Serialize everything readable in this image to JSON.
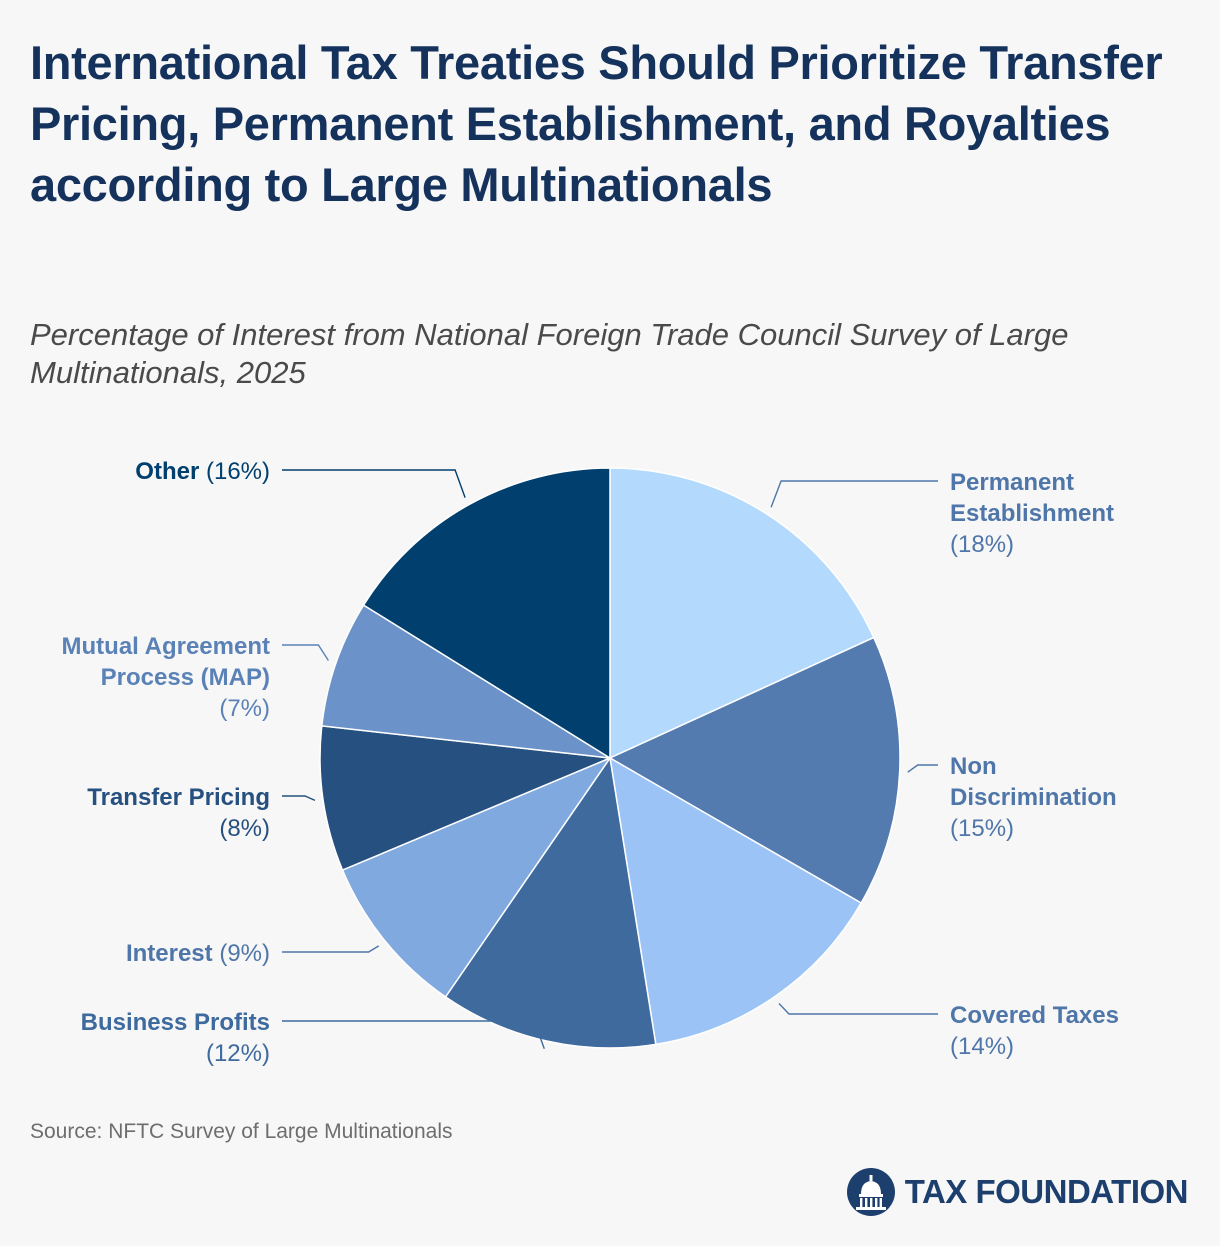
{
  "title": "International Tax Treaties Should Prioritize Transfer Pricing, Permanent Establishment, and Royalties according to Large Multinationals",
  "subtitle": "Percentage of Interest from National Foreign Trade Council Survey of Large Multinationals, 2025",
  "source": "Source: NFTC Survey of Large Multinationals",
  "brand": "TAX FOUNDATION",
  "chart_data": {
    "type": "pie",
    "title": "International Tax Treaties Should Prioritize Transfer Pricing, Permanent Establishment, and Royalties according to Large Multinationals",
    "start": "top, clockwise",
    "slices": [
      {
        "label_lines": [
          "Permanent",
          "Establishment"
        ],
        "pct_label": "(18%)",
        "value": 18,
        "color": "#b3d9fd",
        "label_color": "#4f76a8",
        "side": "right"
      },
      {
        "label_lines": [
          "Non",
          "Discrimination"
        ],
        "pct_label": "(15%)",
        "value": 15,
        "color": "#537bb0",
        "label_color": "#4f76a8",
        "side": "right"
      },
      {
        "label_lines": [
          "Covered Taxes"
        ],
        "pct_label": "(14%)",
        "value": 14,
        "color": "#9cc3f5",
        "label_color": "#4f76a8",
        "side": "right"
      },
      {
        "label_lines": [
          "Business Profits"
        ],
        "pct_label": "(12%)",
        "value": 12,
        "color": "#3e6a9e",
        "label_color": "#3e6a9e",
        "side": "left"
      },
      {
        "label_lines": [
          "Interest"
        ],
        "pct_label": "(9%)",
        "value": 9,
        "color": "#80a9e0",
        "label_color": "#4f76a8",
        "side": "left"
      },
      {
        "label_lines": [
          "Transfer Pricing"
        ],
        "pct_label": "(8%)",
        "value": 8,
        "color": "#26507f",
        "label_color": "#26507f",
        "side": "left"
      },
      {
        "label_lines": [
          "Mutual Agreement",
          "Process (MAP)"
        ],
        "pct_label": "(7%)",
        "value": 7,
        "color": "#6b93c9",
        "label_color": "#5b82b6",
        "side": "left"
      },
      {
        "label_lines": [
          "Other"
        ],
        "pct_label": "(16%)",
        "value": 16,
        "color": "#013f6e",
        "label_color": "#013f6e",
        "side": "left"
      }
    ]
  }
}
